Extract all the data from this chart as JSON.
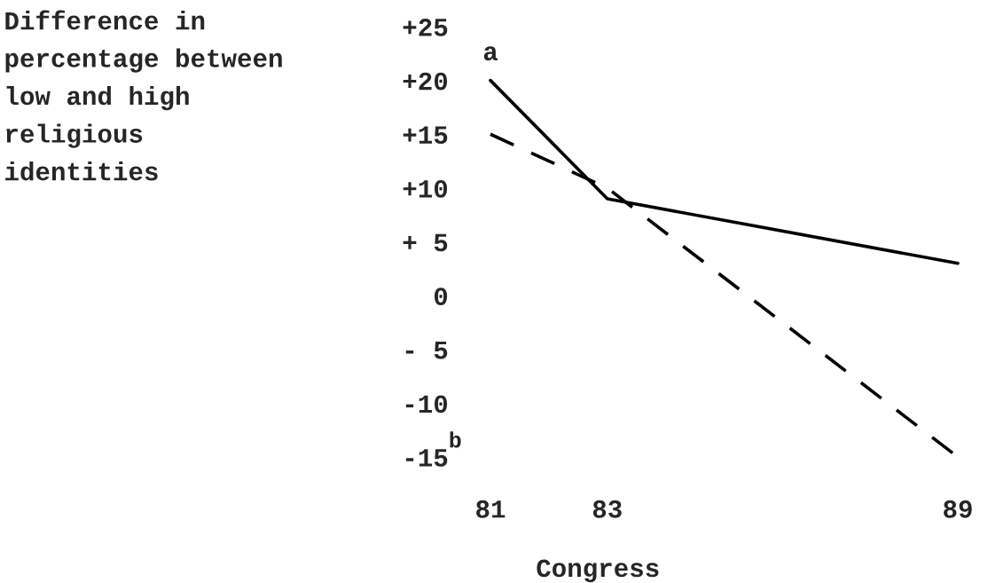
{
  "chart_data": {
    "type": "line",
    "ylabel": "Difference in\npercentage between\nlow and high\nreligious\nidentities",
    "xlabel": "Congress",
    "x": [
      81,
      83,
      89
    ],
    "series": [
      {
        "color": "#000000",
        "line_style": "solid",
        "values": [
          20,
          9,
          3
        ]
      },
      {
        "color": "#000000",
        "line_style": "dashed",
        "values": [
          15,
          10,
          -15
        ]
      }
    ],
    "xlim": [
      81,
      89
    ],
    "xticks": [
      81,
      83,
      89
    ],
    "ylim": [
      -15,
      25
    ],
    "yticks": [
      {
        "value": 25,
        "label": "+25"
      },
      {
        "value": 20,
        "label": "+20"
      },
      {
        "value": 15,
        "label": "+15"
      },
      {
        "value": 10,
        "label": "+10"
      },
      {
        "value": 5,
        "label": "+ 5"
      },
      0,
      {
        "value": -5,
        "label": "- 5"
      },
      {
        "value": -10,
        "label": "-10"
      },
      {
        "value": -15,
        "label": "-15"
      }
    ],
    "annotations": [
      {
        "text": "a",
        "x": 81,
        "y": 20
      },
      "b"
    ]
  }
}
